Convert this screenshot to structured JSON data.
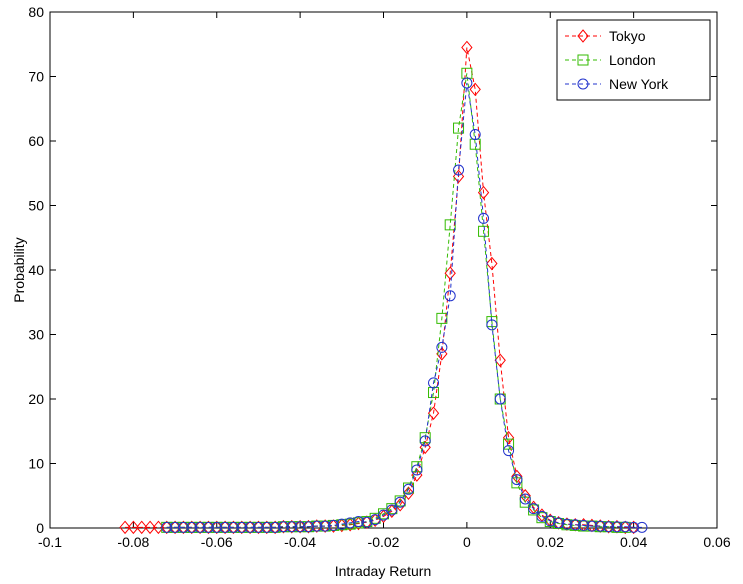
{
  "chart_data": {
    "type": "line",
    "xlabel": "Intraday Return",
    "ylabel": "Probability",
    "x": [
      -0.082,
      -0.08,
      -0.078,
      -0.076,
      -0.074,
      -0.072,
      -0.07,
      -0.068,
      -0.066,
      -0.064,
      -0.062,
      -0.06,
      -0.058,
      -0.056,
      -0.054,
      -0.052,
      -0.05,
      -0.048,
      -0.046,
      -0.044,
      -0.042,
      -0.04,
      -0.038,
      -0.036,
      -0.034,
      -0.032,
      -0.03,
      -0.028,
      -0.026,
      -0.024,
      -0.022,
      -0.02,
      -0.018,
      -0.016,
      -0.014,
      -0.012,
      -0.01,
      -0.008,
      -0.006,
      -0.004,
      -0.002,
      0,
      0.002,
      0.004,
      0.006,
      0.008,
      0.01,
      0.012,
      0.014,
      0.016,
      0.018,
      0.02,
      0.022,
      0.024,
      0.026,
      0.028,
      0.03,
      0.032,
      0.034,
      0.036,
      0.038,
      0.04,
      0.042
    ],
    "series": [
      {
        "name": "Tokyo",
        "color": "#ff0000",
        "marker": "diamond",
        "linestyle": "dashed",
        "values": [
          0.1,
          0.1,
          0.1,
          0.1,
          0.1,
          0.1,
          0.1,
          0.1,
          0.1,
          0.1,
          0.1,
          0.1,
          0.1,
          0.1,
          0.1,
          0.1,
          0.1,
          0.1,
          0.1,
          0.2,
          0.2,
          0.2,
          0.2,
          0.3,
          0.3,
          0.3,
          0.4,
          0.5,
          0.7,
          0.9,
          1.2,
          1.8,
          2.6,
          3.6,
          5.4,
          8.2,
          12.5,
          17.8,
          27,
          39.5,
          54.5,
          74.5,
          68,
          52,
          41,
          26,
          14,
          8,
          5,
          3.2,
          2,
          1.2,
          0.8,
          0.6,
          0.5,
          0.5,
          0.4,
          0.3,
          0.2,
          0.2,
          0.1,
          0.1,
          null
        ]
      },
      {
        "name": "London",
        "color": "#33bb00",
        "marker": "square",
        "linestyle": "dashed",
        "values": [
          null,
          null,
          null,
          null,
          null,
          0.1,
          0.1,
          0.1,
          0.1,
          0.1,
          0.1,
          0.1,
          0.1,
          0.1,
          0.1,
          0.1,
          0.1,
          0.1,
          0.1,
          0.2,
          0.2,
          0.2,
          0.2,
          0.3,
          0.3,
          0.4,
          0.5,
          0.6,
          0.8,
          1,
          1.5,
          2.2,
          3,
          4.2,
          6.2,
          9.5,
          14,
          21,
          32.5,
          47,
          62,
          70.5,
          59.5,
          46,
          32,
          20,
          13,
          7,
          4,
          2.8,
          1.6,
          1,
          0.7,
          0.5,
          0.4,
          0.3,
          0.3,
          0.2,
          0.2,
          0.1,
          0.1,
          null,
          null
        ]
      },
      {
        "name": "New York",
        "color": "#2233cc",
        "marker": "circle",
        "linestyle": "dashed",
        "values": [
          null,
          null,
          null,
          null,
          null,
          0.1,
          0.1,
          0.1,
          0.1,
          0.1,
          0.1,
          0.1,
          0.1,
          0.1,
          0.1,
          0.1,
          0.1,
          0.1,
          0.1,
          0.2,
          0.2,
          0.2,
          0.2,
          0.3,
          0.3,
          0.4,
          0.6,
          0.8,
          1,
          0.9,
          1.3,
          2,
          2.8,
          4,
          6,
          9,
          13.5,
          22.5,
          28,
          36,
          55.5,
          69,
          61,
          48,
          31.5,
          20,
          12,
          7.5,
          4.5,
          3,
          1.8,
          1.1,
          0.8,
          0.6,
          0.5,
          0.4,
          0.3,
          0.3,
          0.2,
          0.2,
          0.2,
          0.1,
          0.1
        ]
      }
    ],
    "xlim": [
      -0.1,
      0.06
    ],
    "xticks": [
      -0.1,
      -0.08,
      -0.06,
      -0.04,
      -0.02,
      0,
      0.02,
      0.04,
      0.06
    ],
    "ylim": [
      0,
      80
    ],
    "yticks": [
      0,
      10,
      20,
      30,
      40,
      50,
      60,
      70,
      80
    ],
    "grid": false,
    "legend": "upper right"
  }
}
